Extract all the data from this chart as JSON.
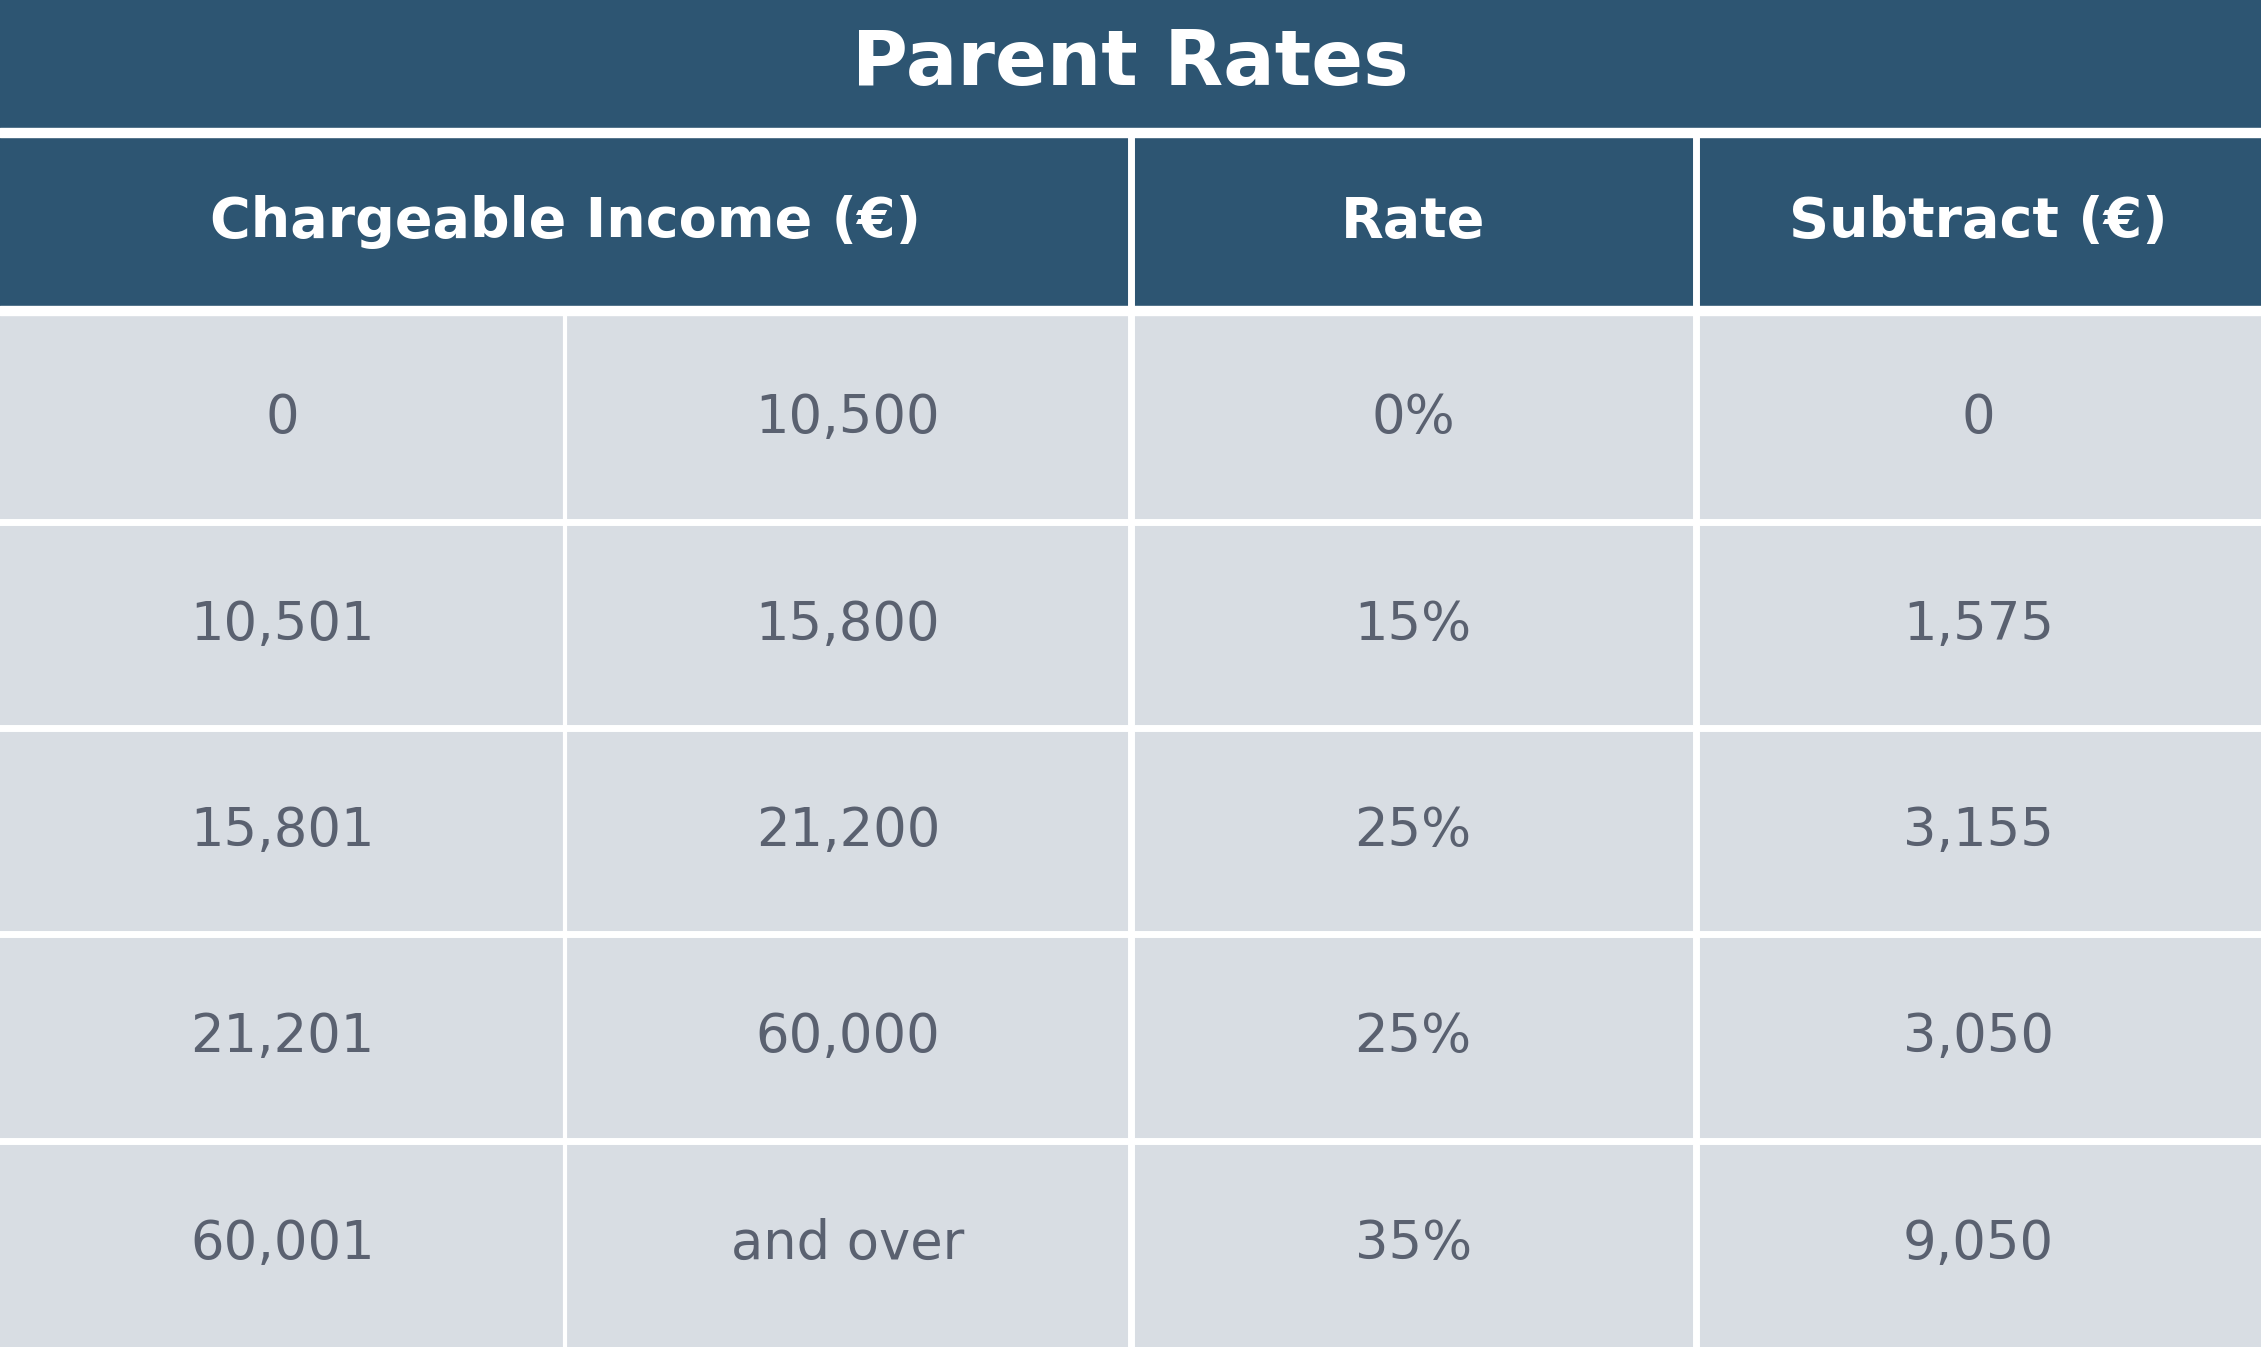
{
  "title": "Parent Rates",
  "title_bg_color": "#2d5572",
  "header_bg_color": "#2d5572",
  "header_text_color": "#ffffff",
  "row_bg_color": "#d8dde3",
  "row_divider_color": "#ffffff",
  "cell_text_color": "#5a6170",
  "col_headers": [
    "Chargeable Income (€)",
    "Rate",
    "Subtract (€)"
  ],
  "rows": [
    [
      "0",
      "10,500",
      "0%",
      "0"
    ],
    [
      "10,501",
      "15,800",
      "15%",
      "1,575"
    ],
    [
      "15,801",
      "21,200",
      "25%",
      "3,155"
    ],
    [
      "21,201",
      "60,000",
      "25%",
      "3,050"
    ],
    [
      "60,001",
      "and over",
      "35%",
      "9,050"
    ]
  ],
  "figsize": [
    22.61,
    13.47
  ],
  "dpi": 100
}
